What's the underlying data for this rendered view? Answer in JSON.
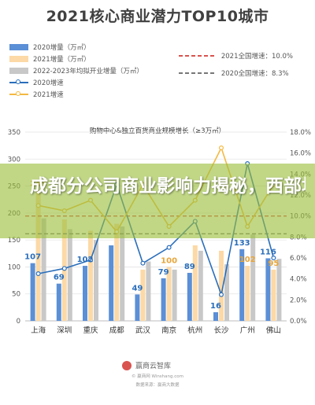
{
  "header": {
    "title": "2021核心商业潜力TOP10城市"
  },
  "legend_left": [
    {
      "label": "2020增量（万㎡）",
      "kind": "bar",
      "color": "#5b8fd6"
    },
    {
      "label": "2021增量（万㎡）",
      "kind": "bar",
      "color": "#fcd9a6"
    },
    {
      "label": "2022-2023年均拟开业增量（万㎡）",
      "kind": "bar",
      "color": "#c8c8c8"
    },
    {
      "label": "2020增速",
      "kind": "line",
      "color": "#2a6ebb"
    },
    {
      "label": "2021增速",
      "kind": "line",
      "color": "#f4b942"
    }
  ],
  "legend_right": [
    {
      "label": "2021全国增速：10.0%",
      "color": "#d9534f"
    },
    {
      "label": "2020全国增速：8.3%",
      "color": "#777777"
    }
  ],
  "banner": {
    "text": "成都分公司商业影响力揭秘，西部地区排名及"
  },
  "footer": {
    "brand": "赢商云智库",
    "line1": "© 赢商网 Winshang.com",
    "line2": "数据来源：赢商大数据"
  },
  "colors": {
    "bar2020": "#5b8fd6",
    "bar2021": "#fcd9a6",
    "bar2223": "#c8c8c8",
    "line2020": "#2a6ebb",
    "line2021": "#f4b942",
    "nat2021": "#d9534f",
    "nat2020": "#777777"
  },
  "chart_data": {
    "type": "bar",
    "title": "购物中心&独立百货商业规模增长（≥3万㎡）",
    "categories": [
      "上海",
      "深圳",
      "重庆",
      "成都",
      "武汉",
      "南京",
      "杭州",
      "长沙",
      "广州",
      "佛山"
    ],
    "series": [
      {
        "name": "2020增量（万㎡）",
        "type": "bar",
        "values": [
          107,
          69,
          102,
          140,
          49,
          79,
          89,
          16,
          133,
          116
        ]
      },
      {
        "name": "2021增量（万㎡）",
        "type": "bar",
        "values": [
          243,
          188,
          167,
          180,
          95,
          100,
          140,
          130,
          102,
          95
        ]
      },
      {
        "name": "2022-2023年均拟开业增量（万㎡）",
        "type": "bar",
        "values": [
          190,
          170,
          150,
          175,
          110,
          95,
          130,
          105,
          160,
          115
        ]
      },
      {
        "name": "2020增速",
        "type": "line",
        "axis": "right",
        "values": [
          4.5,
          5.0,
          5.8,
          13.0,
          5.5,
          7.0,
          9.5,
          2.5,
          15.0,
          6.0
        ]
      },
      {
        "name": "2021增速",
        "type": "line",
        "axis": "right",
        "values": [
          11.0,
          10.5,
          11.5,
          8.5,
          13.0,
          9.0,
          11.5,
          16.5,
          9.0,
          13.0
        ]
      }
    ],
    "reference_lines": [
      {
        "label": "2021全国增速：10.0%",
        "value": 10.0,
        "axis": "right"
      },
      {
        "label": "2020全国增速：8.3%",
        "value": 8.3,
        "axis": "right"
      }
    ],
    "data_labels": [
      {
        "series": "2020增量（万㎡）",
        "values": [
          "107",
          "69",
          "102",
          "",
          "49",
          "79",
          "89",
          "16",
          "133",
          "116"
        ]
      },
      {
        "series": "2021增量（万㎡）",
        "values": [
          "243",
          "",
          "",
          "",
          "",
          "100",
          "",
          "",
          "102",
          "95"
        ]
      }
    ],
    "y_left": {
      "range": [
        0,
        350
      ],
      "ticks": [
        "0",
        "50",
        "100",
        "150",
        "200",
        "250",
        "300",
        "350"
      ]
    },
    "y_right": {
      "range": [
        0,
        18
      ],
      "ticks": [
        "0.0%",
        "2.0%",
        "4.0%",
        "6.0%",
        "8.0%",
        "10.0%",
        "12.0%",
        "14.0%",
        "16.0%",
        "18.0%"
      ]
    },
    "grid": true,
    "legend_position": "top"
  }
}
